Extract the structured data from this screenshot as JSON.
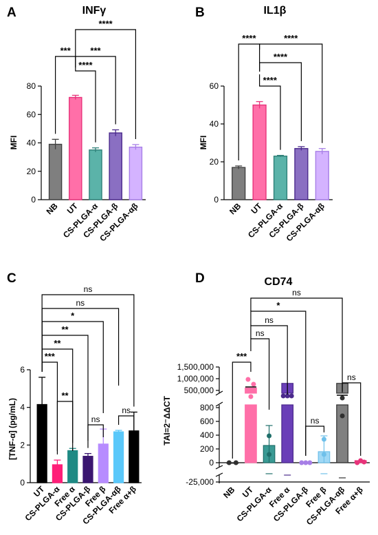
{
  "chart_data": [
    {
      "panel": "A",
      "type": "bar",
      "title": "INFγ",
      "ylabel": "MFI",
      "ylim": [
        0,
        80
      ],
      "yticks": [
        "0",
        "20",
        "40",
        "60",
        "80"
      ],
      "categories": [
        "NB",
        "UT",
        "CS-PLGA-α",
        "CS-PLGA-β",
        "CS-PLGA-αβ"
      ],
      "values": [
        39,
        72,
        35,
        47,
        37
      ],
      "errors": [
        3.5,
        1.5,
        1.5,
        2.2,
        1.8
      ],
      "colors": [
        "#7f7f7f",
        "#ff6fa8",
        "#5bb3a9",
        "#8a6fc2",
        "#d4b3ff"
      ],
      "edge_colors": [
        "#404040",
        "#e8337a",
        "#2f8078",
        "#4b2a8c",
        "#a77fe6"
      ],
      "significance": [
        {
          "from": 0,
          "to": 1,
          "label": "***"
        },
        {
          "from": 1,
          "to": 2,
          "label": "****"
        },
        {
          "from": 1,
          "to": 3,
          "label": "***"
        },
        {
          "from": 1,
          "to": 4,
          "label": "****"
        }
      ]
    },
    {
      "panel": "B",
      "type": "bar",
      "title": "IL1β",
      "ylabel": "MFI",
      "ylim": [
        0,
        60
      ],
      "yticks": [
        "0",
        "20",
        "40",
        "60"
      ],
      "categories": [
        "NB",
        "UT",
        "CS-PLGA-α",
        "CS-PLGA-β",
        "CS-PLGA-αβ"
      ],
      "values": [
        17,
        50,
        23,
        27,
        25.5
      ],
      "errors": [
        0.8,
        1.8,
        0.4,
        1.0,
        1.5
      ],
      "colors": [
        "#7f7f7f",
        "#ff6fa8",
        "#5bb3a9",
        "#8a6fc2",
        "#d4b3ff"
      ],
      "edge_colors": [
        "#404040",
        "#e8337a",
        "#2f8078",
        "#4b2a8c",
        "#a77fe6"
      ],
      "significance": [
        {
          "from": 0,
          "to": 1,
          "label": "****"
        },
        {
          "from": 1,
          "to": 2,
          "label": "****"
        },
        {
          "from": 1,
          "to": 3,
          "label": "****"
        },
        {
          "from": 1,
          "to": 4,
          "label": "****"
        }
      ]
    },
    {
      "panel": "C",
      "type": "bar",
      "title": "",
      "ylabel": "[TNF-α] (pg/mL)",
      "ylim": [
        0,
        6
      ],
      "yticks": [
        "0",
        "2",
        "4",
        "6"
      ],
      "categories": [
        "UT",
        "CS-PLGA-α",
        "Free α",
        "CS-PLGA-β",
        "Free β",
        "CS-PLGA-αβ",
        "Free α+β"
      ],
      "values": [
        4.15,
        0.95,
        1.7,
        1.4,
        2.05,
        2.7,
        2.75
      ],
      "errors": [
        1.45,
        0.25,
        0.12,
        0.15,
        0.8,
        0.08,
        1.0
      ],
      "colors": [
        "#000000",
        "#ff1f78",
        "#1f8a84",
        "#3a1670",
        "#b78cff",
        "#5ac8fa",
        "#000000"
      ],
      "edge_colors": [
        "#000000",
        "#ff1f78",
        "#1f8a84",
        "#3a1670",
        "#b78cff",
        "#5ac8fa",
        "#000000"
      ],
      "significance": [
        {
          "from": 0,
          "to": 6,
          "label": "ns"
        },
        {
          "from": 0,
          "to": 5,
          "label": "ns"
        },
        {
          "from": 0,
          "to": 4,
          "label": "*"
        },
        {
          "from": 0,
          "to": 3,
          "label": "**"
        },
        {
          "from": 0,
          "to": 2,
          "label": "**"
        },
        {
          "from": 0,
          "to": 1,
          "label": "***"
        },
        {
          "from": 1,
          "to": 2,
          "label": "**"
        },
        {
          "from": 3,
          "to": 4,
          "label": "ns"
        },
        {
          "from": 5,
          "to": 6,
          "label": "ns"
        }
      ]
    },
    {
      "panel": "D",
      "type": "bar",
      "title": "CD74",
      "ylabel": "TAI=2⁻ΔΔCT",
      "axis": "broken",
      "yticks": [
        "-25,000",
        "0",
        "200",
        "400",
        "600",
        "800",
        "500,000",
        "1,000,000",
        "1,500,000"
      ],
      "categories": [
        "NB",
        "UT",
        "CS-PLGA-α",
        "Free α",
        "CS-PLGA-β",
        "Free β",
        "CS-PLGA-αβ",
        "Free α+β"
      ],
      "values": [
        1,
        600000,
        250,
        800000,
        1,
        160,
        800000,
        30
      ],
      "colors": [
        "#7f7f7f",
        "#ff6fa8",
        "#3a9a94",
        "#6a3fb8",
        "#cfa8ff",
        "#9fd8f5",
        "#808080",
        "#ff5a8c"
      ],
      "edge_colors": [
        "#303030",
        "#ff6fa8",
        "#1f6f6a",
        "#4b2a8c",
        "#a77fe6",
        "#6fc0ea",
        "#303030",
        "#e8337a"
      ],
      "significance": [
        {
          "from": 0,
          "to": 1,
          "label": "***"
        },
        {
          "from": 1,
          "to": 2,
          "label": "ns"
        },
        {
          "from": 1,
          "to": 3,
          "label": "ns"
        },
        {
          "from": 1,
          "to": 4,
          "label": "*"
        },
        {
          "from": 1,
          "to": 6,
          "label": "ns"
        },
        {
          "from": 4,
          "to": 5,
          "label": "ns"
        },
        {
          "from": 6,
          "to": 7,
          "label": "ns"
        }
      ]
    }
  ]
}
